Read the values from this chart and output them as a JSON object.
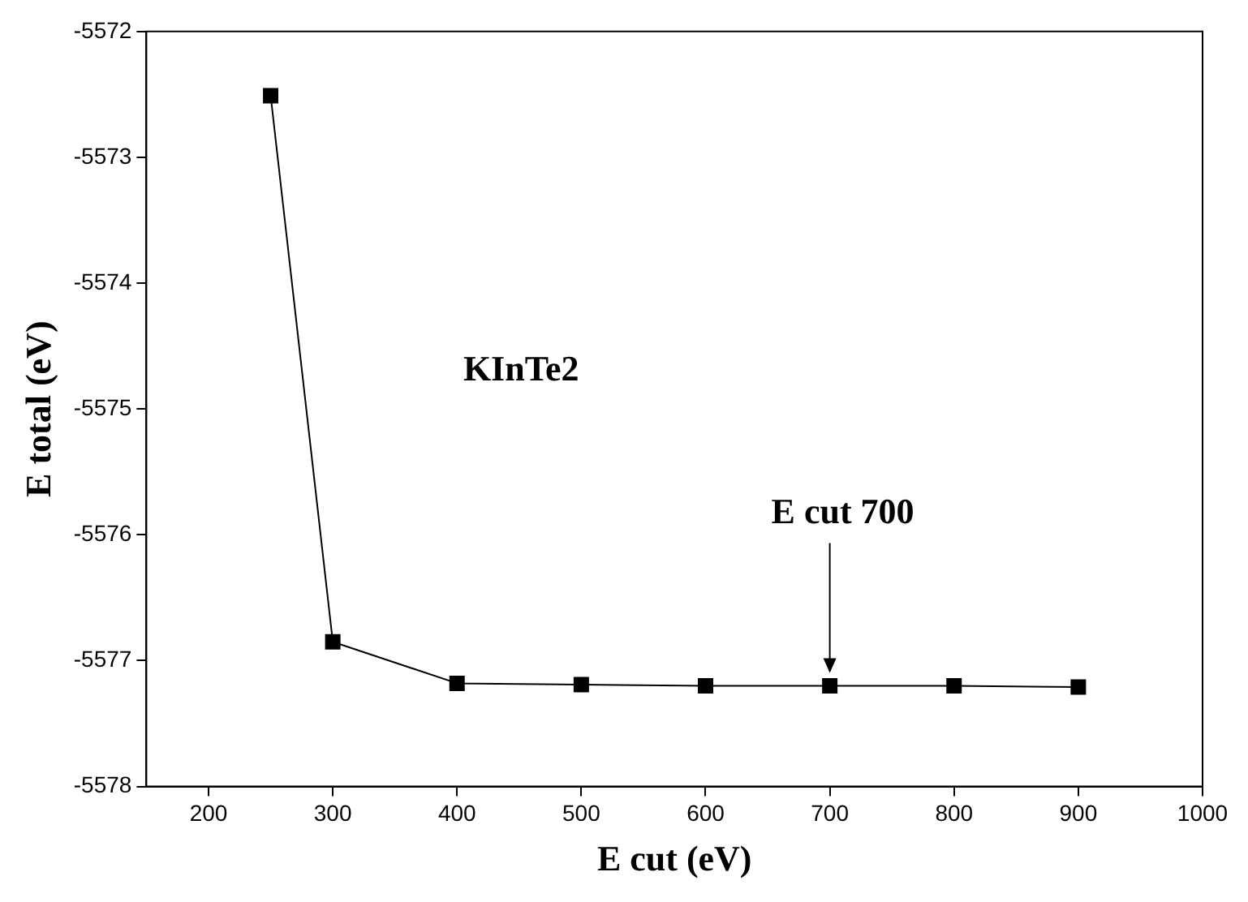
{
  "chart_data": {
    "type": "line",
    "xlabel": "E cut (eV)",
    "ylabel": "E total (eV)",
    "x": [
      250,
      300,
      400,
      500,
      600,
      700,
      800,
      900
    ],
    "series": [
      {
        "color": "#000000",
        "values": [
          -5572.51,
          -5576.85,
          -5577.18,
          -5577.19,
          -5577.2,
          -5577.2,
          -5577.2,
          -5577.21
        ]
      }
    ],
    "xlim": [
      150,
      1000
    ],
    "xticks": [
      200,
      300,
      400,
      500,
      600,
      700,
      800,
      900,
      1000
    ],
    "ylim": [
      -5578,
      -5572
    ],
    "yticks": [
      -5578,
      -5577,
      -5576,
      -5575,
      -5574,
      -5573,
      -5572
    ],
    "grid": false,
    "legend": false,
    "marker": "square",
    "line_style": "solid",
    "annotations": [
      "KInTe2",
      {
        "text": "E cut 700",
        "x": 700,
        "y": -5577.2
      }
    ]
  }
}
